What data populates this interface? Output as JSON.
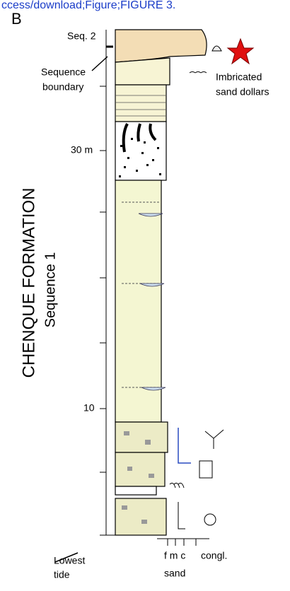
{
  "header": {
    "link": "ccess/download;Figure;FIGURE 3.",
    "panel": "B"
  },
  "labels": {
    "seq2": "Seq. 2",
    "sequence_boundary": [
      "Sequence",
      "boundary"
    ],
    "imbricated": [
      "Imbricated",
      "sand dollars"
    ],
    "m30": "30 m",
    "m10": "10",
    "formation": "CHENQUE  FORMATION",
    "sequence1": "Sequence 1",
    "lowest_tide": [
      "Lowest",
      "tide"
    ],
    "grain": "f m c",
    "congl": "congl.",
    "sand": "sand"
  }
}
